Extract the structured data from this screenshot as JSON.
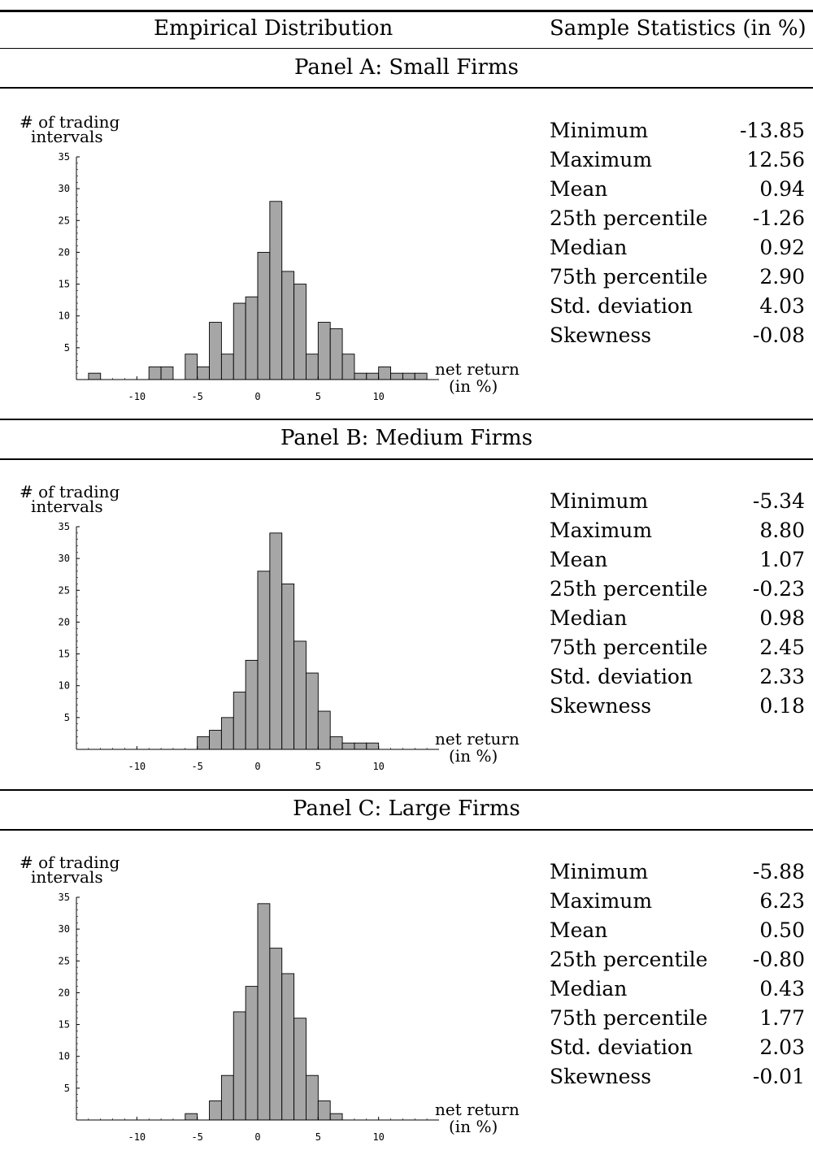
{
  "header": {
    "left": "Empirical Distribution",
    "right": "Sample Statistics (in %)"
  },
  "chart_data": [
    {
      "type": "bar",
      "panel_title": "Panel A: Small Firms",
      "ylabel_line1": "# of trading",
      "ylabel_line2": "intervals",
      "xlabel_line1": "net return",
      "xlabel_line2": "(in %)",
      "bin_start": -14,
      "bin_width": 1,
      "values": [
        1,
        0,
        0,
        0,
        0,
        2,
        2,
        0,
        4,
        2,
        9,
        4,
        12,
        13,
        20,
        28,
        17,
        15,
        4,
        9,
        8,
        4,
        1,
        1,
        2,
        1,
        1,
        1
      ],
      "xlim": [
        -15,
        15
      ],
      "ylim": [
        0,
        35
      ],
      "xticks": [
        -10,
        -5,
        0,
        5,
        10
      ],
      "yticks": [
        5,
        10,
        15,
        20,
        25,
        30,
        35
      ],
      "stats": [
        {
          "label": "Minimum",
          "value": "-13.85"
        },
        {
          "label": "Maximum",
          "value": "12.56"
        },
        {
          "label": "Mean",
          "value": "0.94"
        },
        {
          "label": "25th percentile",
          "value": "-1.26"
        },
        {
          "label": "Median",
          "value": "0.92"
        },
        {
          "label": "75th percentile",
          "value": "2.90"
        },
        {
          "label": "Std. deviation",
          "value": "4.03"
        },
        {
          "label": "Skewness",
          "value": "-0.08"
        }
      ]
    },
    {
      "type": "bar",
      "panel_title": "Panel B: Medium Firms",
      "ylabel_line1": "# of trading",
      "ylabel_line2": "intervals",
      "xlabel_line1": "net return",
      "xlabel_line2": "(in %)",
      "bin_start": -5,
      "bin_width": 1,
      "values": [
        2,
        3,
        5,
        9,
        14,
        28,
        34,
        26,
        17,
        12,
        6,
        2,
        1,
        1,
        1
      ],
      "xlim": [
        -15,
        15
      ],
      "ylim": [
        0,
        35
      ],
      "xticks": [
        -10,
        -5,
        0,
        5,
        10
      ],
      "yticks": [
        5,
        10,
        15,
        20,
        25,
        30,
        35
      ],
      "stats": [
        {
          "label": "Minimum",
          "value": "-5.34"
        },
        {
          "label": "Maximum",
          "value": "8.80"
        },
        {
          "label": "Mean",
          "value": "1.07"
        },
        {
          "label": "25th percentile",
          "value": "-0.23"
        },
        {
          "label": "Median",
          "value": "0.98"
        },
        {
          "label": "75th percentile",
          "value": "2.45"
        },
        {
          "label": "Std. deviation",
          "value": "2.33"
        },
        {
          "label": "Skewness",
          "value": "0.18"
        }
      ]
    },
    {
      "type": "bar",
      "panel_title": "Panel C: Large Firms",
      "ylabel_line1": "# of trading",
      "ylabel_line2": "intervals",
      "xlabel_line1": "net return",
      "xlabel_line2": "(in %)",
      "bin_start": -6,
      "bin_width": 1,
      "values": [
        1,
        0,
        3,
        7,
        17,
        21,
        34,
        27,
        23,
        16,
        7,
        3,
        1
      ],
      "xlim": [
        -15,
        15
      ],
      "ylim": [
        0,
        35
      ],
      "xticks": [
        -10,
        -5,
        0,
        5,
        10
      ],
      "yticks": [
        5,
        10,
        15,
        20,
        25,
        30,
        35
      ],
      "stats": [
        {
          "label": "Minimum",
          "value": "-5.88"
        },
        {
          "label": "Maximum",
          "value": "6.23"
        },
        {
          "label": "Mean",
          "value": "0.50"
        },
        {
          "label": "25th percentile",
          "value": "-0.80"
        },
        {
          "label": "Median",
          "value": "0.43"
        },
        {
          "label": "75th percentile",
          "value": "1.77"
        },
        {
          "label": "Std. deviation",
          "value": "2.03"
        },
        {
          "label": "Skewness",
          "value": "-0.01"
        }
      ]
    }
  ]
}
